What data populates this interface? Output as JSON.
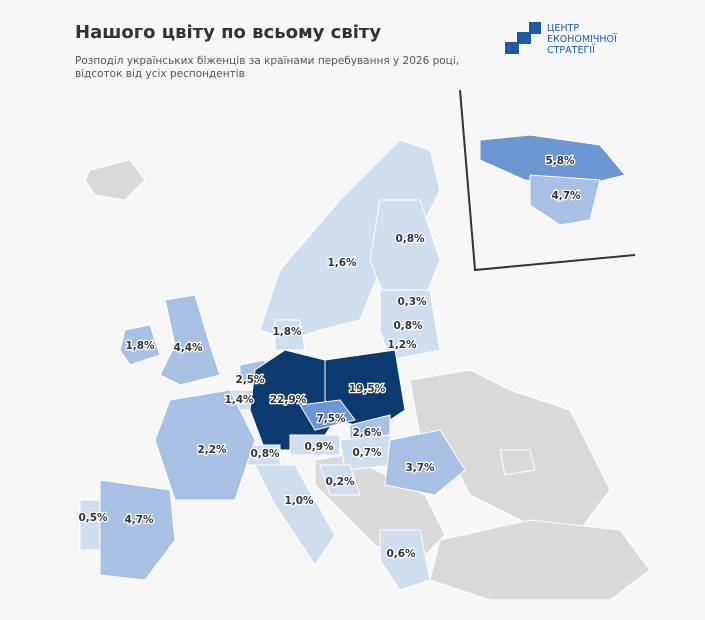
{
  "title": "Нашого цвіту по всьому світу",
  "subtitle": "Розподіл українських біженців за країнами перебування у 2026 році, відсоток від усіх респондентів",
  "logo": {
    "line1": "ЦЕНТР",
    "line2": "ЕКОНОМІЧНОЇ",
    "line3": "СТРАТЕГІЇ"
  },
  "colors": {
    "darkest": "#0b3a70",
    "mid": "#6c96d2",
    "light": "#a7c0e3",
    "lightest": "#cfdded",
    "no_data": "#d9d9d9",
    "logo": "#1f5aa6"
  },
  "countries": [
    {
      "name": "Canada",
      "value": "5,8%"
    },
    {
      "name": "USA",
      "value": "4,7%"
    },
    {
      "name": "Norway",
      "value": "1,6%"
    },
    {
      "name": "Finland",
      "value": "0,8%"
    },
    {
      "name": "Estonia",
      "value": "0,3%"
    },
    {
      "name": "Latvia",
      "value": "0,8%"
    },
    {
      "name": "Lithuania",
      "value": "1,2%"
    },
    {
      "name": "Denmark",
      "value": "1,8%"
    },
    {
      "name": "Ireland",
      "value": "1,8%"
    },
    {
      "name": "United Kingdom",
      "value": "4,4%"
    },
    {
      "name": "Netherlands",
      "value": "2,5%"
    },
    {
      "name": "Belgium",
      "value": "1,4%"
    },
    {
      "name": "Germany",
      "value": "22,9%"
    },
    {
      "name": "Poland",
      "value": "19,5%"
    },
    {
      "name": "Czechia",
      "value": "7,5%"
    },
    {
      "name": "Slovakia",
      "value": "2,6%"
    },
    {
      "name": "Austria",
      "value": "0,9%"
    },
    {
      "name": "Hungary",
      "value": "0,7%"
    },
    {
      "name": "Romania",
      "value": "3,7%"
    },
    {
      "name": "Switzerland",
      "value": "0,8%"
    },
    {
      "name": "France",
      "value": "2,2%"
    },
    {
      "name": "Italy",
      "value": "1,0%"
    },
    {
      "name": "Croatia",
      "value": "0,2%"
    },
    {
      "name": "Greece",
      "value": "0,6%"
    },
    {
      "name": "Portugal",
      "value": "0,5%"
    },
    {
      "name": "Spain",
      "value": "4,7%"
    }
  ]
}
